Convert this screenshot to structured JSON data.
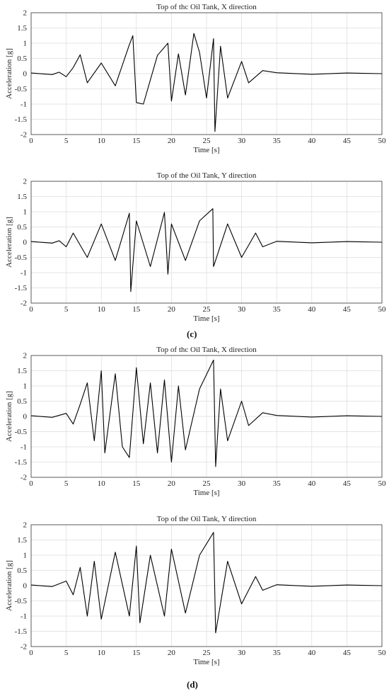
{
  "figure": {
    "label_c": "(c)",
    "label_d": "(d)"
  },
  "chart_data": [
    {
      "type": "line",
      "title": "Top of thc Oil Tank, X direction",
      "xlabel": "Time [s]",
      "ylabel": "Acceleration [g]",
      "xlim": [
        0,
        50
      ],
      "ylim": [
        -2,
        2
      ],
      "xticks": [
        "0",
        "5",
        "10",
        "15",
        "20",
        "25",
        "30",
        "35",
        "40",
        "45",
        "50"
      ],
      "yticks": [
        "2",
        "1.5",
        "1",
        "0.5",
        "0",
        "-0.5",
        "-1",
        "-1.5",
        "-2"
      ],
      "grid": true,
      "series": [
        {
          "name": "",
          "color": "#000000",
          "x": [
            0,
            3,
            4,
            5,
            6,
            7,
            8,
            10,
            12,
            14,
            14.5,
            15,
            16,
            18,
            19.5,
            20,
            21,
            22,
            23.2,
            24,
            25,
            26,
            26.2,
            27,
            28,
            30,
            31,
            33,
            35,
            40,
            45,
            50
          ],
          "y": [
            0.02,
            -0.03,
            0.05,
            -0.1,
            0.2,
            0.62,
            -0.3,
            0.35,
            -0.4,
            0.95,
            1.25,
            -0.95,
            -1.0,
            0.6,
            1.0,
            -0.9,
            0.65,
            -0.7,
            1.32,
            0.7,
            -0.8,
            1.15,
            -1.9,
            0.9,
            -0.8,
            0.4,
            -0.3,
            0.1,
            0.03,
            -0.02,
            0.02,
            0.0
          ]
        }
      ]
    },
    {
      "type": "line",
      "title": "Top of the Oil Tank, Y direction",
      "xlabel": "Time [s]",
      "ylabel": "Acceleration [g]",
      "xlim": [
        0,
        50
      ],
      "ylim": [
        -2,
        2
      ],
      "xticks": [
        "0",
        "5",
        "10",
        "15",
        "20",
        "25",
        "30",
        "35",
        "40",
        "45",
        "50"
      ],
      "yticks": [
        "2",
        "1.5",
        "1",
        "0.5",
        "0",
        "-0.5",
        "-1",
        "-1.5",
        "-2"
      ],
      "grid": true,
      "series": [
        {
          "name": "",
          "color": "#000000",
          "x": [
            0,
            3,
            4,
            5,
            6,
            8,
            10,
            12,
            14,
            14.2,
            15,
            17,
            19,
            19.5,
            20,
            22,
            24,
            25.9,
            26,
            28,
            30,
            32,
            33,
            35,
            40,
            45,
            50
          ],
          "y": [
            0.02,
            -0.03,
            0.05,
            -0.15,
            0.3,
            -0.5,
            0.6,
            -0.6,
            0.95,
            -1.62,
            0.7,
            -0.8,
            0.98,
            -1.05,
            0.6,
            -0.6,
            0.7,
            1.1,
            -0.8,
            0.6,
            -0.5,
            0.3,
            -0.15,
            0.03,
            -0.02,
            0.02,
            0.0
          ]
        }
      ]
    },
    {
      "type": "line",
      "title": "Top of thc Oil Tank, X direction",
      "xlabel": "Time [s]",
      "ylabel": "Acceleration [g]",
      "xlim": [
        0,
        50
      ],
      "ylim": [
        -2,
        2
      ],
      "xticks": [
        "0",
        "5",
        "10",
        "15",
        "20",
        "25",
        "30",
        "35",
        "40",
        "45",
        "50"
      ],
      "yticks": [
        "2",
        "1.5",
        "1",
        "0.5",
        "0",
        "-0.5",
        "-1",
        "-1.5",
        "-2"
      ],
      "grid": true,
      "series": [
        {
          "name": "",
          "color": "#000000",
          "x": [
            0,
            3,
            5,
            6,
            7,
            8,
            9,
            10,
            10.5,
            12,
            13,
            14,
            15,
            16,
            17,
            18,
            19,
            20,
            21,
            22,
            24,
            26,
            26.3,
            27,
            28,
            30,
            31,
            33,
            35,
            40,
            45,
            50
          ],
          "y": [
            0.02,
            -0.03,
            0.1,
            -0.25,
            0.4,
            1.1,
            -0.8,
            1.5,
            -1.2,
            1.4,
            -1.0,
            -1.35,
            1.6,
            -0.9,
            1.1,
            -1.2,
            1.2,
            -1.5,
            1.0,
            -1.1,
            0.9,
            1.85,
            -1.65,
            0.9,
            -0.8,
            0.5,
            -0.3,
            0.12,
            0.03,
            -0.02,
            0.02,
            0.0
          ]
        }
      ]
    },
    {
      "type": "line",
      "title": "Top of the Oil Tank, Y direction",
      "xlabel": "Time [s]",
      "ylabel": "Acceleration [g]",
      "xlim": [
        0,
        50
      ],
      "ylim": [
        -2,
        2
      ],
      "xticks": [
        "0",
        "5",
        "10",
        "15",
        "20",
        "25",
        "30",
        "35",
        "40",
        "45",
        "50"
      ],
      "yticks": [
        "2",
        "1.5",
        "1",
        "0.5",
        "0",
        "-0.5",
        "-1",
        "-1.5",
        "-2"
      ],
      "grid": true,
      "series": [
        {
          "name": "",
          "color": "#000000",
          "x": [
            0,
            3,
            5,
            6,
            7,
            8,
            9,
            10,
            12,
            14,
            15,
            15.5,
            17,
            19,
            20,
            22,
            24,
            26,
            26.3,
            28,
            30,
            32,
            33,
            35,
            40,
            45,
            50
          ],
          "y": [
            0.02,
            -0.03,
            0.15,
            -0.3,
            0.6,
            -1.0,
            0.8,
            -1.1,
            1.1,
            -1.0,
            1.3,
            -1.22,
            1.0,
            -1.0,
            1.2,
            -0.9,
            1.0,
            1.75,
            -1.55,
            0.8,
            -0.6,
            0.3,
            -0.15,
            0.03,
            -0.02,
            0.02,
            0.0
          ]
        }
      ]
    }
  ]
}
